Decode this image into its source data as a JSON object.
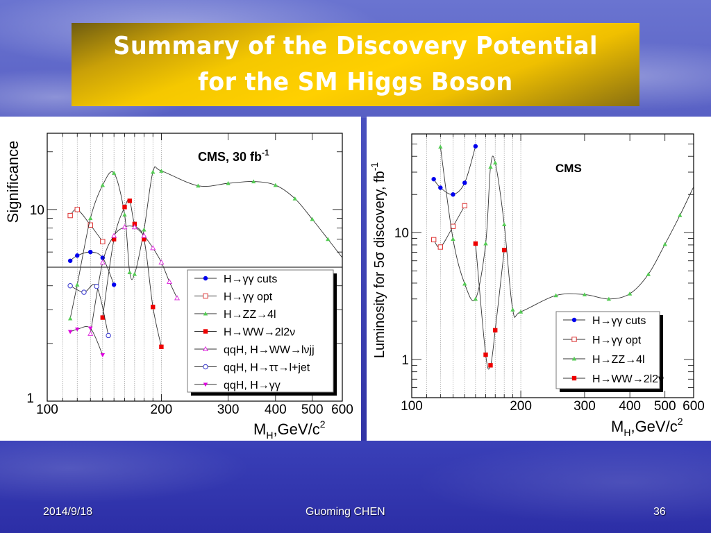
{
  "slide": {
    "title_line1": "Summary of the Discovery Potential",
    "title_line2": "for the SM Higgs Boson",
    "footer_date": "2014/9/18",
    "footer_author": "Guoming CHEN",
    "footer_page": "36"
  },
  "chart_data": [
    {
      "type": "line",
      "annotation": "CMS, 30 fb",
      "annotation_sup": "-1",
      "ylabel": "Significance",
      "xlabel": "M",
      "xlabel_sub": "H",
      "xlabel_rest": ",GeV/c",
      "xlabel_sup": "2",
      "xscale": "log",
      "yscale": "log",
      "xlim": [
        100,
        600
      ],
      "ylim": [
        1,
        25
      ],
      "xticks": [
        "100",
        "200",
        "300",
        "400",
        "500",
        "600"
      ],
      "yticks": [
        "1",
        "10"
      ],
      "reference_line": 5,
      "grid": "vertical dotted lines at 110-200",
      "legend": "bottom-right",
      "series": [
        {
          "name": "H→γγ cuts",
          "color": "#0000ee",
          "marker": "circle-filled",
          "x": [
            115,
            120,
            130,
            140,
            150
          ],
          "y": [
            5.4,
            5.75,
            6.0,
            5.6,
            4.05
          ]
        },
        {
          "name": "H→γγ opt",
          "color": "#dd3333",
          "marker": "square-open",
          "x": [
            115,
            120,
            130,
            140
          ],
          "y": [
            9.3,
            10.0,
            8.3,
            6.8
          ]
        },
        {
          "name": "H→ZZ→4l",
          "color": "#55cc55",
          "marker": "triangle-filled",
          "x": [
            115,
            120,
            130,
            140,
            150,
            160,
            165,
            170,
            180,
            190,
            200,
            250,
            300,
            350,
            400,
            450,
            500,
            550,
            600
          ],
          "y": [
            2.7,
            4.05,
            9.0,
            13.4,
            15.5,
            9.4,
            4.7,
            4.6,
            7.85,
            15.7,
            15.9,
            13.3,
            13.7,
            14.0,
            13.4,
            11.4,
            8.9,
            7.0,
            5.6
          ]
        },
        {
          "name": "H→WW→2l2ν",
          "color": "#ee0000",
          "marker": "square-filled",
          "x": [
            140,
            150,
            160,
            165,
            170,
            180,
            190,
            200
          ],
          "y": [
            2.73,
            7.0,
            10.3,
            11.1,
            8.4,
            7.0,
            3.1,
            1.92
          ]
        },
        {
          "name": "qqH, H→WW→lνjj",
          "color": "#dd33dd",
          "marker": "triangle-open",
          "x": [
            130,
            140,
            150,
            160,
            170,
            180,
            190,
            200,
            210,
            220
          ],
          "y": [
            2.25,
            5.3,
            7.3,
            8.1,
            8.1,
            7.3,
            6.3,
            5.3,
            4.2,
            3.45
          ]
        },
        {
          "name": "qqH, H→ττ→l+jet",
          "color": "#3333cc",
          "marker": "circle-open",
          "x": [
            115,
            125,
            135,
            145
          ],
          "y": [
            4.0,
            3.7,
            3.97,
            2.2
          ]
        },
        {
          "name": "qqH, H→γγ",
          "color": "#dd00dd",
          "marker": "triangle-down-filled",
          "x": [
            115,
            120,
            130,
            140
          ],
          "y": [
            2.3,
            2.37,
            2.4,
            1.74
          ]
        }
      ]
    },
    {
      "type": "line",
      "annotation": "CMS",
      "ylabel": "Luminosity for 5σ discovery, fb",
      "ylabel_sup": "-1",
      "xlabel": "M",
      "xlabel_sub": "H",
      "xlabel_rest": ",GeV/c",
      "xlabel_sup": "2",
      "xscale": "log",
      "yscale": "log",
      "xlim": [
        100,
        600
      ],
      "ylim": [
        0.5,
        60
      ],
      "xticks": [
        "100",
        "200",
        "300",
        "400",
        "500",
        "600"
      ],
      "yticks": [
        "1",
        "10"
      ],
      "grid": "vertical dotted lines at 110-200",
      "legend": "bottom-right",
      "series": [
        {
          "name": "H→γγ cuts",
          "color": "#0000ee",
          "marker": "circle-filled",
          "x": [
            115,
            120,
            130,
            140,
            150
          ],
          "y": [
            26.4,
            22.6,
            20.0,
            24.7,
            48.0
          ]
        },
        {
          "name": "H→γγ opt",
          "color": "#dd3333",
          "marker": "square-open",
          "x": [
            115,
            120,
            130,
            140
          ],
          "y": [
            8.8,
            7.7,
            11.2,
            16.3
          ]
        },
        {
          "name": "H→ZZ→4l",
          "color": "#55cc55",
          "marker": "triangle-filled",
          "x": [
            120,
            130,
            140,
            150,
            160,
            165,
            170,
            180,
            190,
            200,
            250,
            300,
            350,
            400,
            450,
            500,
            550,
            600
          ],
          "y": [
            47.5,
            8.9,
            3.95,
            3.0,
            8.2,
            33.0,
            35.6,
            11.6,
            2.47,
            2.38,
            3.2,
            3.25,
            3.0,
            3.3,
            4.7,
            8.1,
            13.7,
            23.0
          ]
        },
        {
          "name": "H→WW→2l2ν",
          "color": "#ee0000",
          "marker": "square-filled",
          "x": [
            150,
            160,
            165,
            170,
            180
          ],
          "y": [
            8.2,
            1.09,
            0.9,
            1.7,
            7.3
          ]
        }
      ]
    }
  ]
}
